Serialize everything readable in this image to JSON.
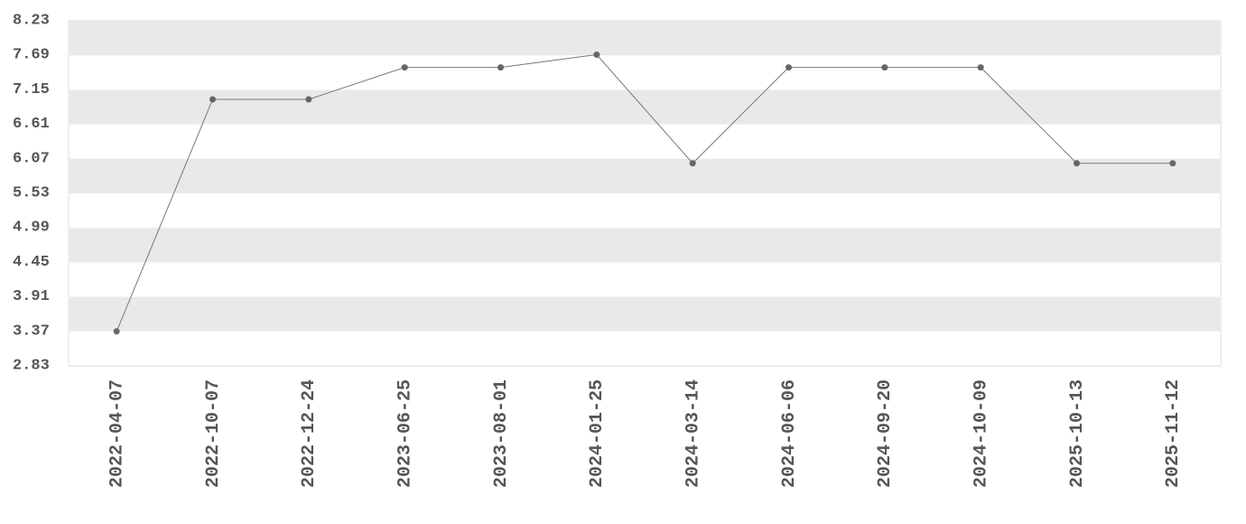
{
  "chart_data": {
    "type": "line",
    "categories": [
      "2022-04-07",
      "2022-10-07",
      "2022-12-24",
      "2023-06-25",
      "2023-08-01",
      "2024-01-25",
      "2024-03-14",
      "2024-06-06",
      "2024-09-20",
      "2024-10-09",
      "2025-10-13",
      "2025-11-12"
    ],
    "values": [
      3.37,
      7.0,
      7.0,
      7.5,
      7.5,
      7.7,
      6.0,
      7.5,
      7.5,
      7.5,
      6.0,
      6.0
    ],
    "color": "#777777",
    "marker_color": "#666666",
    "ylim": [
      2.83,
      8.23
    ],
    "yticks": [
      2.83,
      3.37,
      3.91,
      4.45,
      4.99,
      5.53,
      6.07,
      6.61,
      7.15,
      7.69,
      8.23
    ],
    "grid": true
  }
}
